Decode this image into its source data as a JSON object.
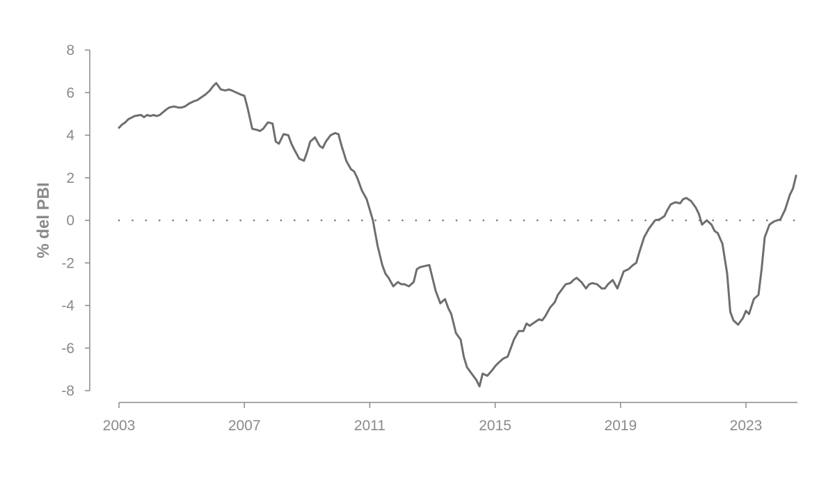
{
  "chart_data": {
    "type": "line",
    "title": "",
    "xlabel": "",
    "ylabel": "% del PBI",
    "xlim": [
      2003,
      2024.6
    ],
    "ylim": [
      -8,
      8
    ],
    "x_ticks": [
      2003,
      2007,
      2011,
      2015,
      2019,
      2023
    ],
    "x_tick_labels": [
      "2003",
      "2007",
      "2011",
      "2015",
      "2019",
      "2023"
    ],
    "y_ticks": [
      8,
      6,
      4,
      2,
      0,
      -2,
      -4,
      -6,
      -8
    ],
    "y_tick_labels": [
      "8",
      "6",
      "4",
      "2",
      "0",
      "-2",
      "-4",
      "-6",
      "-8"
    ],
    "zero_line": "dotted",
    "grid": false,
    "legend": "none",
    "colors": {
      "line": "#6e6e6e",
      "axis": "#8a8a8a",
      "zero_line": "#7a7a7a"
    },
    "series": [
      {
        "x": [
          2003.0,
          2003.1,
          2003.2,
          2003.3,
          2003.5,
          2003.7,
          2003.8,
          2003.9,
          2004.0,
          2004.1,
          2004.2,
          2004.3,
          2004.5,
          2004.6,
          2004.75,
          2004.9,
          2005.0,
          2005.1,
          2005.25,
          2005.4,
          2005.5,
          2005.6,
          2005.75,
          2005.9,
          2006.0,
          2006.1,
          2006.25,
          2006.4,
          2006.5,
          2006.6,
          2006.75,
          2006.9,
          2007.0,
          2007.1,
          2007.25,
          2007.4,
          2007.5,
          2007.6,
          2007.75,
          2007.9,
          2008.0,
          2008.1,
          2008.25,
          2008.4,
          2008.5,
          2008.6,
          2008.75,
          2008.9,
          2009.0,
          2009.1,
          2009.25,
          2009.4,
          2009.5,
          2009.6,
          2009.75,
          2009.9,
          2010.0,
          2010.1,
          2010.25,
          2010.4,
          2010.5,
          2010.6,
          2010.75,
          2010.9,
          2011.0,
          2011.1,
          2011.25,
          2011.4,
          2011.5,
          2011.6,
          2011.75,
          2011.9,
          2012.0,
          2012.1,
          2012.25,
          2012.4,
          2012.5,
          2012.6,
          2012.75,
          2012.9,
          2013.0,
          2013.1,
          2013.25,
          2013.4,
          2013.5,
          2013.6,
          2013.75,
          2013.9,
          2014.0,
          2014.1,
          2014.25,
          2014.4,
          2014.5,
          2014.6,
          2014.75,
          2014.9,
          2015.0,
          2015.1,
          2015.25,
          2015.4,
          2015.5,
          2015.6,
          2015.75,
          2015.9,
          2016.0,
          2016.1,
          2016.25,
          2016.4,
          2016.5,
          2016.6,
          2016.75,
          2016.9,
          2017.0,
          2017.1,
          2017.25,
          2017.4,
          2017.5,
          2017.6,
          2017.75,
          2017.9,
          2018.0,
          2018.1,
          2018.25,
          2018.4,
          2018.5,
          2018.6,
          2018.75,
          2018.9,
          2019.0,
          2019.1,
          2019.25,
          2019.4,
          2019.5,
          2019.6,
          2019.75,
          2019.9,
          2020.0,
          2020.1,
          2020.25,
          2020.4,
          2020.5,
          2020.6,
          2020.75,
          2020.9,
          2021.0,
          2021.1,
          2021.25,
          2021.4,
          2021.5,
          2021.6,
          2021.75,
          2021.9,
          2022.0,
          2022.1,
          2022.25,
          2022.4,
          2022.5,
          2022.6,
          2022.75,
          2022.9,
          2023.0,
          2023.1,
          2023.25,
          2023.4,
          2023.5,
          2023.6,
          2023.75,
          2023.9,
          2024.0,
          2024.1,
          2024.25,
          2024.4,
          2024.5,
          2024.6
        ],
        "values": [
          4.35,
          4.5,
          4.6,
          4.75,
          4.9,
          4.95,
          4.85,
          4.95,
          4.9,
          4.95,
          4.9,
          4.95,
          5.2,
          5.3,
          5.35,
          5.3,
          5.3,
          5.35,
          5.5,
          5.6,
          5.65,
          5.75,
          5.9,
          6.1,
          6.3,
          6.45,
          6.15,
          6.1,
          6.15,
          6.1,
          6.0,
          5.9,
          5.85,
          5.3,
          4.3,
          4.25,
          4.2,
          4.3,
          4.6,
          4.55,
          3.7,
          3.6,
          4.05,
          4.0,
          3.6,
          3.3,
          2.9,
          2.8,
          3.2,
          3.7,
          3.9,
          3.5,
          3.4,
          3.7,
          4.0,
          4.1,
          4.05,
          3.5,
          2.8,
          2.4,
          2.3,
          2.0,
          1.4,
          1.0,
          0.5,
          0.0,
          -1.2,
          -2.1,
          -2.5,
          -2.7,
          -3.1,
          -2.9,
          -3.0,
          -3.0,
          -3.1,
          -2.9,
          -2.3,
          -2.2,
          -2.15,
          -2.1,
          -2.7,
          -3.3,
          -3.9,
          -3.7,
          -4.1,
          -4.4,
          -5.3,
          -5.6,
          -6.4,
          -6.9,
          -7.2,
          -7.5,
          -7.8,
          -7.2,
          -7.3,
          -7.05,
          -6.85,
          -6.7,
          -6.5,
          -6.4,
          -6.0,
          -5.6,
          -5.2,
          -5.2,
          -4.85,
          -4.95,
          -4.8,
          -4.65,
          -4.7,
          -4.5,
          -4.1,
          -3.85,
          -3.5,
          -3.3,
          -3.0,
          -2.95,
          -2.8,
          -2.7,
          -2.9,
          -3.2,
          -3.0,
          -2.95,
          -3.0,
          -3.2,
          -3.2,
          -3.0,
          -2.8,
          -3.2,
          -2.8,
          -2.4,
          -2.3,
          -2.1,
          -2.0,
          -1.5,
          -0.8,
          -0.4,
          -0.2,
          0.0,
          0.05,
          0.2,
          0.5,
          0.75,
          0.85,
          0.8,
          1.0,
          1.05,
          0.9,
          0.6,
          0.3,
          -0.2,
          0.0,
          -0.2,
          -0.5,
          -0.6,
          -1.1,
          -2.5,
          -4.3,
          -4.7,
          -4.9,
          -4.6,
          -4.25,
          -4.4,
          -3.7,
          -3.5,
          -2.3,
          -0.8,
          -0.2,
          -0.05,
          0.0,
          0.05,
          0.5,
          1.2,
          1.5,
          2.1
        ]
      }
    ]
  }
}
